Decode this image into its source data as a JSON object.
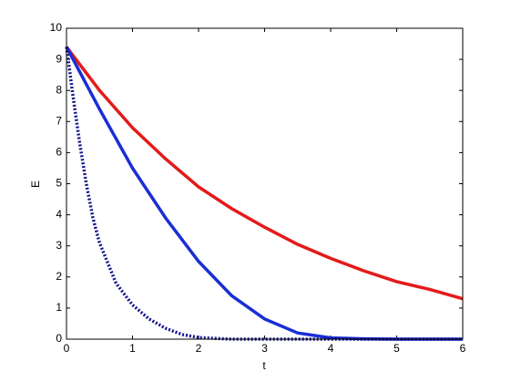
{
  "chart_data": {
    "type": "line",
    "xlabel": "t",
    "ylabel": "E",
    "xlim": [
      0,
      6
    ],
    "ylim": [
      0,
      10
    ],
    "xticks": [
      0,
      1,
      2,
      3,
      4,
      5,
      6
    ],
    "yticks": [
      0,
      1,
      2,
      3,
      4,
      5,
      6,
      7,
      8,
      9,
      10
    ],
    "series": [
      {
        "color": "#e41a1a",
        "linestyle": "solid",
        "x": [
          0,
          0.5,
          1,
          1.5,
          2,
          2.5,
          3,
          3.5,
          4,
          4.5,
          5,
          5.5,
          6
        ],
        "values": [
          9.4,
          8.0,
          6.8,
          5.8,
          4.9,
          4.2,
          3.6,
          3.05,
          2.6,
          2.2,
          1.85,
          1.6,
          1.3
        ]
      },
      {
        "color": "#1a2ed6",
        "linestyle": "solid",
        "x": [
          0,
          0.5,
          1,
          1.5,
          2,
          2.5,
          3,
          3.5,
          4,
          4.5,
          5,
          5.5,
          6
        ],
        "values": [
          9.4,
          7.4,
          5.5,
          3.9,
          2.5,
          1.4,
          0.65,
          0.2,
          0.04,
          0.01,
          0,
          0,
          0
        ]
      },
      {
        "color": "#14148c",
        "linestyle": "dotted",
        "x": [
          0,
          0.1,
          0.2,
          0.3,
          0.4,
          0.5,
          0.75,
          1,
          1.25,
          1.5,
          1.75,
          2,
          2.5,
          3,
          4,
          5,
          6
        ],
        "values": [
          9.4,
          7.8,
          6.3,
          5.0,
          3.9,
          3.1,
          1.8,
          1.1,
          0.65,
          0.35,
          0.15,
          0.05,
          0,
          0,
          0,
          0,
          0
        ]
      }
    ]
  }
}
